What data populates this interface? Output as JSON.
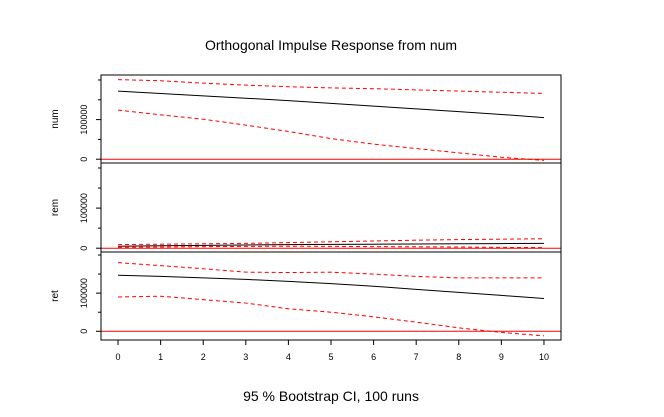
{
  "chart_data": {
    "type": "line",
    "title": "Orthogonal Impulse Response from num",
    "footer": "95 % Bootstrap CI,  100 runs",
    "x": [
      0,
      1,
      2,
      3,
      4,
      5,
      6,
      7,
      8,
      9,
      10
    ],
    "x_ticks": [
      0,
      1,
      2,
      3,
      4,
      5,
      6,
      7,
      8,
      9,
      10
    ],
    "xlim": [
      -0.4,
      10.4
    ],
    "y_ticks": [
      0,
      100000
    ],
    "colors": {
      "response": "#000000",
      "ci": "#ff0000",
      "zero": "#ff0000"
    },
    "panels": [
      {
        "label": "num",
        "ylim": [
          -2000,
          205000
        ],
        "series": [
          {
            "role": "response",
            "values": [
              172000,
              166000,
              160000,
              154000,
              148000,
              141000,
              134000,
              127000,
              120000,
              113000,
              105000
            ]
          },
          {
            "role": "upper",
            "values": [
              201000,
              198000,
              192000,
              187000,
              183000,
              180000,
              178000,
              175000,
              172000,
              169000,
              166000
            ]
          },
          {
            "role": "lower",
            "values": [
              124000,
              112000,
              101000,
              86000,
              70000,
              52000,
              38000,
              27000,
              16000,
              5000,
              -3000
            ]
          }
        ]
      },
      {
        "label": "rem",
        "ylim": [
          -2000,
          205000
        ],
        "series": [
          {
            "role": "response",
            "values": [
              5000,
              6000,
              7000,
              8000,
              9000,
              9500,
              10000,
              10500,
              11000,
              11500,
              12000
            ]
          },
          {
            "role": "upper",
            "values": [
              9000,
              10000,
              11000,
              12000,
              14000,
              16000,
              18000,
              20000,
              21500,
              22500,
              23500
            ]
          },
          {
            "role": "lower",
            "values": [
              2000,
              3000,
              4000,
              4500,
              5000,
              4500,
              4000,
              3500,
              3000,
              2000,
              1500
            ]
          }
        ]
      },
      {
        "label": "ret",
        "ylim": [
          -15000,
          200000
        ],
        "series": [
          {
            "role": "response",
            "values": [
              147000,
              144000,
              140000,
              136000,
              131000,
              125000,
              118000,
              110000,
              102000,
              94000,
              86000
            ]
          },
          {
            "role": "upper",
            "values": [
              180000,
              172000,
              164000,
              155000,
              154000,
              155000,
              150000,
              144000,
              140000,
              140000,
              140000
            ]
          },
          {
            "role": "lower",
            "values": [
              90000,
              92000,
              83000,
              74000,
              59000,
              50000,
              38000,
              24000,
              9000,
              -3000,
              -12000
            ]
          }
        ]
      }
    ]
  }
}
